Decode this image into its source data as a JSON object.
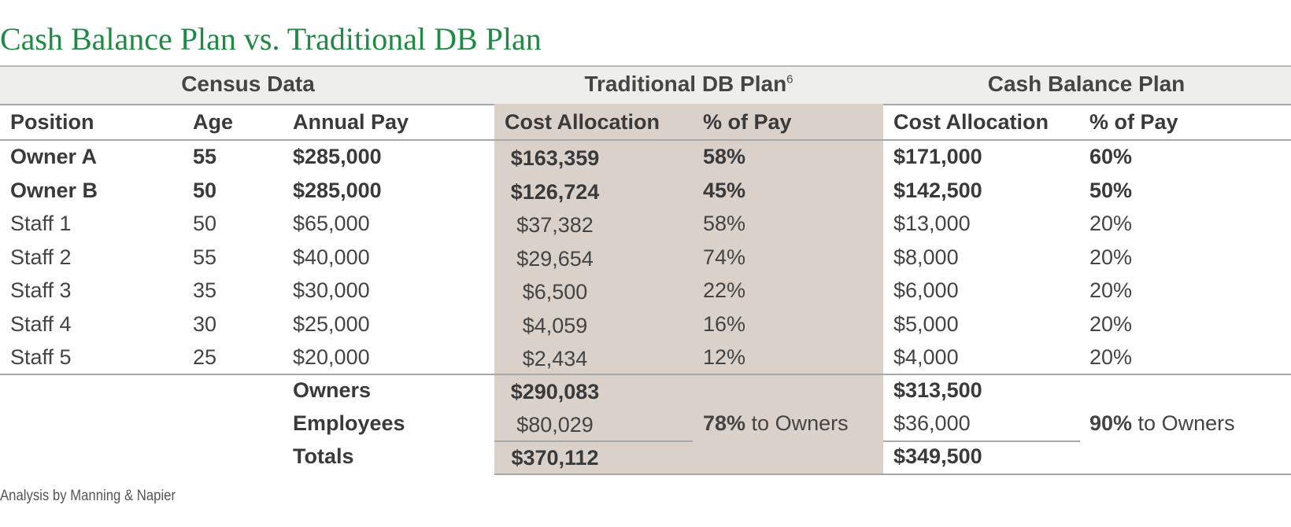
{
  "title": "Cash Balance Plan vs. Traditional DB Plan",
  "groups": {
    "census": "Census Data",
    "traditional": "Traditional DB Plan",
    "traditional_footnote": "6",
    "cash_balance": "Cash Balance Plan"
  },
  "columns": {
    "position": "Position",
    "age": "Age",
    "annual_pay": "Annual Pay",
    "db_cost": "Cost Allocation",
    "db_pct": "% of Pay",
    "cb_cost": "Cost Allocation",
    "cb_pct": "% of Pay"
  },
  "rows": [
    {
      "position": "Owner A",
      "age": "55",
      "pay": "$285,000",
      "db_cost": "$163,359",
      "db_pct": "58%",
      "cb_cost": "$171,000",
      "cb_pct": "60%",
      "bold": true
    },
    {
      "position": "Owner B",
      "age": "50",
      "pay": "$285,000",
      "db_cost": "$126,724",
      "db_pct": "45%",
      "cb_cost": "$142,500",
      "cb_pct": "50%",
      "bold": true
    },
    {
      "position": "Staff 1",
      "age": "50",
      "pay": "$65,000",
      "db_cost": "$37,382",
      "db_pct": "58%",
      "cb_cost": "$13,000",
      "cb_pct": "20%",
      "bold": false
    },
    {
      "position": "Staff 2",
      "age": "55",
      "pay": "$40,000",
      "db_cost": "$29,654",
      "db_pct": "74%",
      "cb_cost": "$8,000",
      "cb_pct": "20%",
      "bold": false
    },
    {
      "position": "Staff 3",
      "age": "35",
      "pay": "$30,000",
      "db_cost": "$6,500",
      "db_pct": "22%",
      "cb_cost": "$6,000",
      "cb_pct": "20%",
      "bold": false
    },
    {
      "position": "Staff 4",
      "age": "30",
      "pay": "$25,000",
      "db_cost": "$4,059",
      "db_pct": "16%",
      "cb_cost": "$5,000",
      "cb_pct": "20%",
      "bold": false
    },
    {
      "position": "Staff 5",
      "age": "25",
      "pay": "$20,000",
      "db_cost": "$2,434",
      "db_pct": "12%",
      "cb_cost": "$4,000",
      "cb_pct": "20%",
      "bold": false
    }
  ],
  "summary": {
    "owners_label": "Owners",
    "employees_label": "Employees",
    "totals_label": "Totals",
    "db_owners": "$290,083",
    "db_employees": "$80,029",
    "db_totals": "$370,112",
    "db_share_pct": "78%",
    "db_share_text": " to Owners",
    "cb_owners": "$313,500",
    "cb_employees": "$36,000",
    "cb_totals": "$349,500",
    "cb_share_pct": "90%",
    "cb_share_text": " to Owners"
  },
  "footnote": "Analysis by Manning & Napier"
}
